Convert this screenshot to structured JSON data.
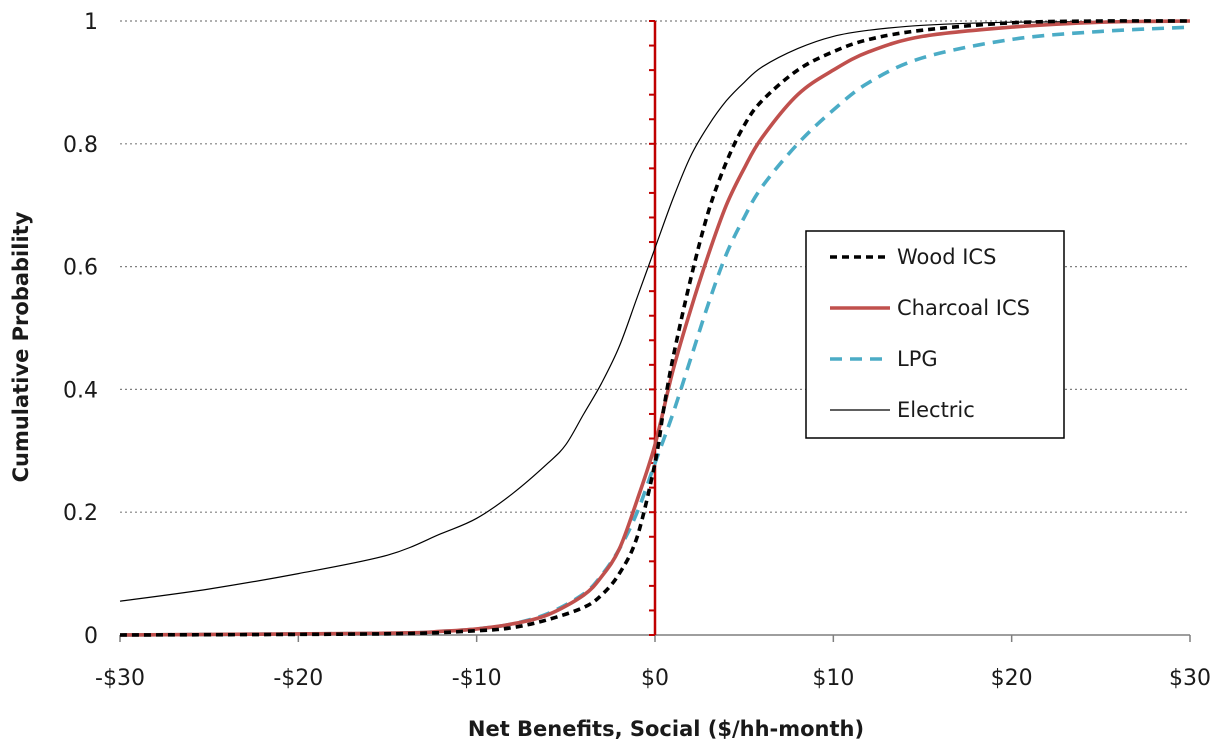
{
  "chart_data": {
    "type": "line",
    "xlabel": "Net Benefits, Social ($/hh-month)",
    "ylabel": "Cumulative Probability",
    "xlim": [
      -30,
      30
    ],
    "ylim": [
      0,
      1
    ],
    "x_ticks": [
      -30,
      -20,
      -10,
      0,
      10,
      20,
      30
    ],
    "x_tick_labels": [
      "-$30",
      "-$20",
      "-$10",
      "$0",
      "$10",
      "$20",
      "$30"
    ],
    "y_ticks": [
      0,
      0.2,
      0.4,
      0.6,
      0.8,
      1
    ],
    "y_tick_labels": [
      "0",
      "0.2",
      "0.4",
      "0.6",
      "0.8",
      "1"
    ],
    "grid": "horizontal dotted",
    "reference_line": {
      "x": 0,
      "color": "#c00000"
    },
    "legend_position": "right, inside plot",
    "series": [
      {
        "name": "Wood ICS",
        "color": "#000000",
        "style": "dashed",
        "points": [
          [
            -30,
            0
          ],
          [
            -15,
            0.002
          ],
          [
            -10,
            0.007
          ],
          [
            -8,
            0.012
          ],
          [
            -6,
            0.025
          ],
          [
            -4,
            0.045
          ],
          [
            -3,
            0.065
          ],
          [
            -2,
            0.1
          ],
          [
            -1,
            0.16
          ],
          [
            0,
            0.28
          ],
          [
            0.5,
            0.37
          ],
          [
            1,
            0.45
          ],
          [
            2,
            0.58
          ],
          [
            3,
            0.69
          ],
          [
            4,
            0.77
          ],
          [
            5,
            0.83
          ],
          [
            6,
            0.87
          ],
          [
            8,
            0.92
          ],
          [
            10,
            0.95
          ],
          [
            12,
            0.97
          ],
          [
            15,
            0.985
          ],
          [
            20,
            0.997
          ],
          [
            25,
            1
          ],
          [
            30,
            1
          ]
        ]
      },
      {
        "name": "Charcoal ICS",
        "color": "#c0504d",
        "style": "solid",
        "points": [
          [
            -30,
            0
          ],
          [
            -15,
            0.003
          ],
          [
            -12,
            0.006
          ],
          [
            -10,
            0.01
          ],
          [
            -8,
            0.018
          ],
          [
            -6,
            0.033
          ],
          [
            -4,
            0.065
          ],
          [
            -3,
            0.095
          ],
          [
            -2,
            0.14
          ],
          [
            -1,
            0.22
          ],
          [
            0,
            0.31
          ],
          [
            1,
            0.43
          ],
          [
            2,
            0.53
          ],
          [
            3,
            0.62
          ],
          [
            4,
            0.7
          ],
          [
            5,
            0.76
          ],
          [
            6,
            0.81
          ],
          [
            8,
            0.88
          ],
          [
            10,
            0.92
          ],
          [
            12,
            0.95
          ],
          [
            15,
            0.975
          ],
          [
            20,
            0.99
          ],
          [
            25,
            0.998
          ],
          [
            30,
            1
          ]
        ]
      },
      {
        "name": "LPG",
        "color": "#4bacc6",
        "style": "dashed",
        "points": [
          [
            -30,
            0
          ],
          [
            -15,
            0.003
          ],
          [
            -12,
            0.006
          ],
          [
            -10,
            0.01
          ],
          [
            -8,
            0.018
          ],
          [
            -6,
            0.035
          ],
          [
            -4,
            0.067
          ],
          [
            -3,
            0.097
          ],
          [
            -2,
            0.14
          ],
          [
            -1,
            0.2
          ],
          [
            0,
            0.28
          ],
          [
            1,
            0.36
          ],
          [
            2,
            0.45
          ],
          [
            3,
            0.54
          ],
          [
            4,
            0.62
          ],
          [
            5,
            0.68
          ],
          [
            6,
            0.73
          ],
          [
            8,
            0.8
          ],
          [
            10,
            0.855
          ],
          [
            12,
            0.9
          ],
          [
            15,
            0.94
          ],
          [
            20,
            0.97
          ],
          [
            25,
            0.983
          ],
          [
            30,
            0.99
          ]
        ]
      },
      {
        "name": "Electric",
        "color": "#000000",
        "style": "thin",
        "points": [
          [
            -30,
            0.055
          ],
          [
            -25,
            0.075
          ],
          [
            -20,
            0.1
          ],
          [
            -15,
            0.13
          ],
          [
            -12,
            0.165
          ],
          [
            -10,
            0.19
          ],
          [
            -8,
            0.23
          ],
          [
            -6,
            0.28
          ],
          [
            -5,
            0.31
          ],
          [
            -4,
            0.36
          ],
          [
            -3,
            0.41
          ],
          [
            -2,
            0.47
          ],
          [
            -1,
            0.55
          ],
          [
            0,
            0.63
          ],
          [
            1,
            0.71
          ],
          [
            2,
            0.78
          ],
          [
            3,
            0.83
          ],
          [
            4,
            0.87
          ],
          [
            5,
            0.9
          ],
          [
            6,
            0.925
          ],
          [
            8,
            0.955
          ],
          [
            10,
            0.975
          ],
          [
            12,
            0.985
          ],
          [
            15,
            0.993
          ],
          [
            20,
            0.998
          ],
          [
            30,
            1
          ]
        ]
      }
    ]
  }
}
